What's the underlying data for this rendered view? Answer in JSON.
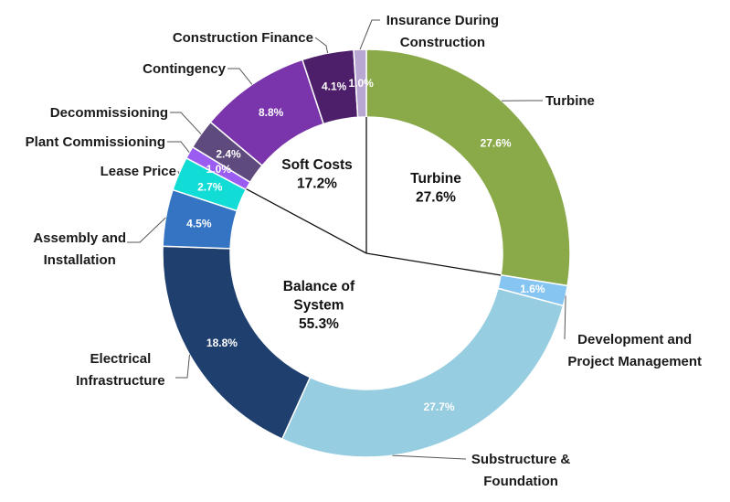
{
  "chart_data": {
    "type": "pie",
    "title": "",
    "rings": {
      "outer": [
        {
          "label": "Turbine",
          "label_lines": [
            "Turbine"
          ],
          "value": 27.6,
          "display": "27.6%",
          "color": "#8aaa4a"
        },
        {
          "label": "Development and Project Management",
          "label_lines": [
            "Development and",
            "Project Management"
          ],
          "value": 1.6,
          "display": "1.6%",
          "color": "#86c5f2"
        },
        {
          "label": "Substructure & Foundation",
          "label_lines": [
            "Substructure &",
            "Foundation"
          ],
          "value": 27.7,
          "display": "27.7%",
          "color": "#96cde0"
        },
        {
          "label": "Electrical Infrastructure",
          "label_lines": [
            "Electrical",
            "Infrastructure"
          ],
          "value": 18.8,
          "display": "18.8%",
          "color": "#1f3f6e"
        },
        {
          "label": "Assembly and Installation",
          "label_lines": [
            "Assembly and",
            "Installation"
          ],
          "value": 4.5,
          "display": "4.5%",
          "color": "#3574c2"
        },
        {
          "label": "Lease Price",
          "label_lines": [
            "Lease Price"
          ],
          "value": 2.7,
          "display": "2.7%",
          "color": "#12dcd6"
        },
        {
          "label": "Plant Commissioning",
          "label_lines": [
            "Plant Commissioning"
          ],
          "value": 1.0,
          "display": "1.0%",
          "color": "#9b5cf2"
        },
        {
          "label": "Decommissioning",
          "label_lines": [
            "Decommissioning"
          ],
          "value": 2.4,
          "display": "2.4%",
          "color": "#5e4a7c"
        },
        {
          "label": "Contingency",
          "label_lines": [
            "Contingency"
          ],
          "value": 8.8,
          "display": "8.8%",
          "color": "#7b35ac"
        },
        {
          "label": "Construction Finance",
          "label_lines": [
            "Construction Finance"
          ],
          "value": 4.1,
          "display": "4.1%",
          "color": "#4d1f6b"
        },
        {
          "label": "Insurance During Construction",
          "label_lines": [
            "Insurance During",
            "Construction"
          ],
          "value": 1.0,
          "display": "1.0%",
          "color": "#b8a6d3"
        }
      ],
      "inner": [
        {
          "label": "Turbine",
          "label_lines": [
            "Turbine",
            "27.6%"
          ],
          "value": 27.6
        },
        {
          "label": "Balance of System",
          "label_lines": [
            "Balance of",
            "System",
            "55.3%"
          ],
          "value": 55.3
        },
        {
          "label": "Soft Costs",
          "label_lines": [
            "Soft Costs",
            "17.2%"
          ],
          "value": 17.2
        }
      ]
    },
    "start": "12 o'clock",
    "direction": "clockwise",
    "legend": "none"
  }
}
